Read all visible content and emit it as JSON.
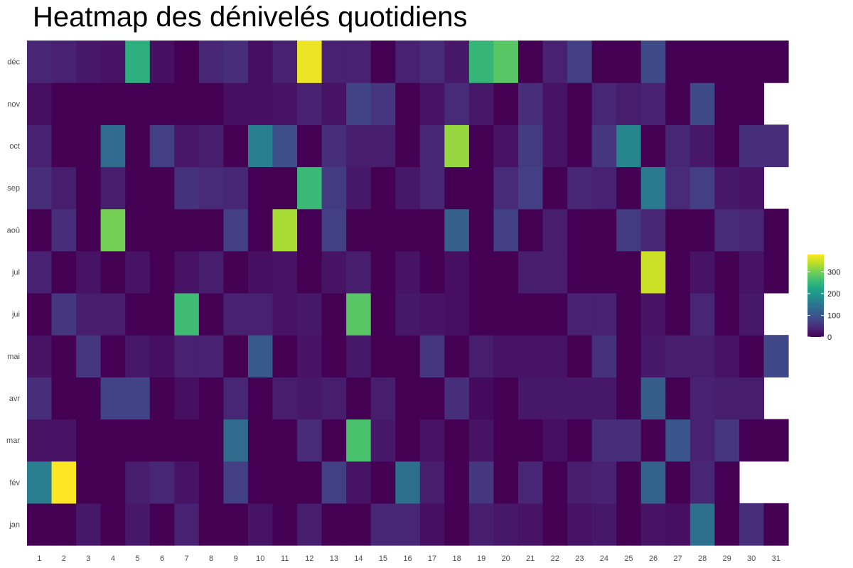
{
  "chart_data": {
    "type": "heatmap",
    "title": "Heatmap des dénivelés quotidiens",
    "xlabel": "",
    "ylabel": "",
    "x": [
      1,
      2,
      3,
      4,
      5,
      6,
      7,
      8,
      9,
      10,
      11,
      12,
      13,
      14,
      15,
      16,
      17,
      18,
      19,
      20,
      21,
      22,
      23,
      24,
      25,
      26,
      27,
      28,
      29,
      30,
      31
    ],
    "y": [
      "jan",
      "fév",
      "mar",
      "avr",
      "mai",
      "jui",
      "jul",
      "aoû",
      "sep",
      "oct",
      "nov",
      "déc"
    ],
    "zlim": [
      0,
      380
    ],
    "colorscale": "viridis",
    "legend": {
      "position": "right",
      "ticks": [
        0,
        100,
        200,
        300
      ]
    },
    "grid": false,
    "values": [
      [
        0,
        0,
        25,
        0,
        25,
        0,
        35,
        0,
        0,
        20,
        0,
        30,
        0,
        0,
        40,
        40,
        15,
        0,
        30,
        25,
        20,
        0,
        20,
        25,
        0,
        20,
        15,
        140,
        0,
        50,
        0
      ],
      [
        160,
        380,
        0,
        0,
        30,
        40,
        20,
        0,
        70,
        0,
        0,
        0,
        70,
        20,
        0,
        140,
        30,
        0,
        60,
        0,
        40,
        0,
        30,
        35,
        0,
        120,
        0,
        40,
        0,
        null,
        null
      ],
      [
        20,
        20,
        0,
        0,
        0,
        0,
        0,
        0,
        130,
        0,
        0,
        45,
        0,
        270,
        25,
        0,
        20,
        0,
        20,
        0,
        0,
        15,
        0,
        50,
        50,
        0,
        100,
        35,
        60,
        0,
        0
      ],
      [
        50,
        0,
        0,
        75,
        75,
        0,
        15,
        0,
        40,
        0,
        30,
        25,
        30,
        0,
        30,
        0,
        0,
        50,
        10,
        0,
        25,
        25,
        25,
        25,
        0,
        110,
        0,
        35,
        30,
        30,
        null
      ],
      [
        20,
        0,
        60,
        0,
        25,
        15,
        35,
        35,
        0,
        105,
        0,
        20,
        0,
        25,
        0,
        0,
        60,
        0,
        30,
        20,
        20,
        20,
        0,
        55,
        0,
        25,
        30,
        30,
        20,
        0,
        80
      ],
      [
        0,
        60,
        30,
        30,
        0,
        0,
        260,
        0,
        35,
        35,
        20,
        25,
        0,
        280,
        0,
        25,
        20,
        15,
        0,
        0,
        0,
        0,
        35,
        35,
        0,
        20,
        0,
        40,
        0,
        25,
        null
      ],
      [
        35,
        0,
        20,
        0,
        20,
        0,
        20,
        30,
        0,
        15,
        20,
        0,
        20,
        30,
        0,
        20,
        0,
        15,
        0,
        0,
        30,
        30,
        0,
        0,
        0,
        350,
        0,
        20,
        0,
        20,
        0
      ],
      [
        0,
        50,
        0,
        300,
        0,
        0,
        0,
        0,
        70,
        0,
        330,
        0,
        70,
        0,
        0,
        0,
        0,
        115,
        0,
        70,
        0,
        30,
        0,
        0,
        65,
        40,
        0,
        0,
        45,
        40,
        0
      ],
      [
        50,
        30,
        0,
        30,
        0,
        0,
        55,
        45,
        40,
        0,
        0,
        255,
        65,
        25,
        0,
        25,
        40,
        0,
        0,
        45,
        70,
        0,
        40,
        35,
        0,
        155,
        45,
        70,
        25,
        20,
        null
      ],
      [
        35,
        0,
        0,
        130,
        0,
        70,
        25,
        30,
        0,
        160,
        90,
        0,
        50,
        30,
        30,
        0,
        40,
        320,
        0,
        20,
        65,
        20,
        0,
        60,
        170,
        0,
        40,
        25,
        0,
        50,
        50
      ],
      [
        15,
        0,
        0,
        0,
        0,
        0,
        0,
        0,
        15,
        15,
        20,
        35,
        20,
        75,
        60,
        0,
        20,
        45,
        25,
        0,
        50,
        20,
        0,
        40,
        30,
        35,
        0,
        85,
        0,
        0,
        null
      ],
      [
        40,
        35,
        25,
        20,
        240,
        15,
        0,
        40,
        50,
        15,
        35,
        370,
        35,
        35,
        0,
        35,
        45,
        25,
        250,
        280,
        0,
        35,
        70,
        0,
        0,
        85,
        0,
        0,
        0,
        0,
        0
      ]
    ]
  }
}
